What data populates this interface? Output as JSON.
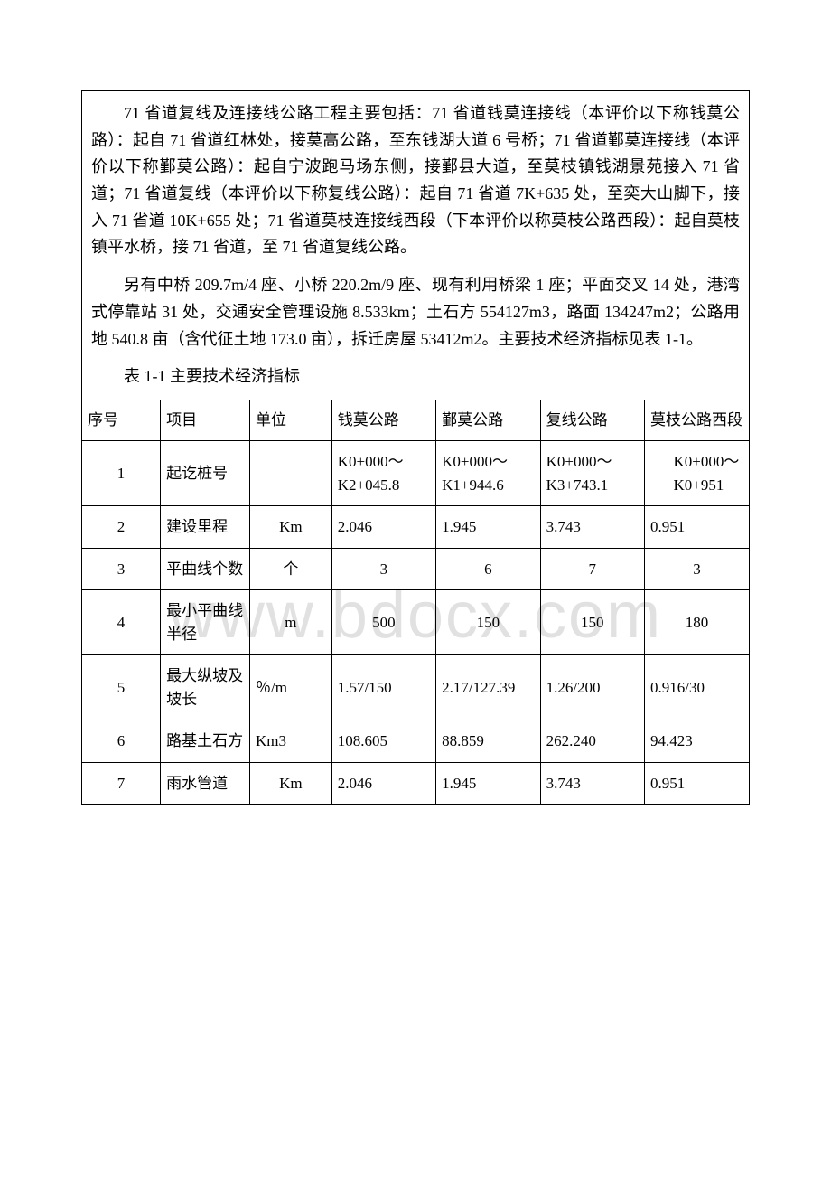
{
  "watermark": "www.bdocx.com",
  "paragraphs": {
    "p1": "71 省道复线及连接线公路工程主要包括：71 省道钱莫连接线（本评价以下称钱莫公路）：起自 71 省道红林处，接莫高公路，至东钱湖大道 6 号桥；71 省道鄞莫连接线（本评价以下称鄞莫公路）：起自宁波跑马场东侧，接鄞县大道，至莫枝镇钱湖景苑接入 71 省道；71 省道复线（本评价以下称复线公路）：起自 71 省道 7K+635 处，至奕大山脚下，接入 71 省道 10K+655 处；71 省道莫枝连接线西段（下本评价以称莫枝公路西段）：起自莫枝镇平水桥，接 71 省道，至 71 省道复线公路。",
    "p2": "另有中桥 209.7m/4 座、小桥 220.2m/9 座、现有利用桥梁 1 座；平面交叉 14 处，港湾式停靠站 31 处，交通安全管理设施 8.533km；土石方 554127m3，路面 134247m2；公路用地 540.8 亩（含代征土地 173.0 亩），拆迁房屋 53412m2。主要技术经济指标见表 1-1。",
    "caption": "表 1-1 主要技术经济指标"
  },
  "table": {
    "header": {
      "seq": "序号",
      "item": "项目",
      "unit": "单位",
      "c1": "钱莫公路",
      "c2": "鄞莫公路",
      "c3": "复线公路",
      "c4": "莫枝公路西段"
    },
    "rows": [
      {
        "seq": "1",
        "item": "起讫桩号",
        "unit": "",
        "c1": "K0+000～K2+045.8",
        "c2": "K0+000～K1+944.6",
        "c3": "K0+000～K3+743.1",
        "c4_a": "K0+000～",
        "c4_b": "K0+951"
      },
      {
        "seq": "2",
        "item": "建设里程",
        "unit": "Km",
        "c1": "2.046",
        "c2": "1.945",
        "c3": "3.743",
        "c4": "0.951"
      },
      {
        "seq": "3",
        "item": "平曲线个数",
        "unit": "个",
        "c1": "3",
        "c2": "6",
        "c3": "7",
        "c4": "3"
      },
      {
        "seq": "4",
        "item": "最小平曲线半径",
        "unit": "m",
        "c1": "500",
        "c2": "150",
        "c3": "150",
        "c4": "180"
      },
      {
        "seq": "5",
        "item": "最大纵坡及坡长",
        "unit": "％/m",
        "c1": "1.57/150",
        "c2": "2.17/127.39",
        "c3": "1.26/200",
        "c4": "0.916/30"
      },
      {
        "seq": "6",
        "item": "路基土石方",
        "unit": "Km3",
        "c1": "108.605",
        "c2": "88.859",
        "c3": "262.240",
        "c4": "94.423"
      },
      {
        "seq": "7",
        "item": "雨水管道",
        "unit": "Km",
        "c1": "2.046",
        "c2": "1.945",
        "c3": "3.743",
        "c4": "0.951"
      }
    ]
  },
  "styles": {
    "background_color": "#ffffff",
    "text_color": "#000000",
    "border_color": "#000000",
    "watermark_color": "rgba(200,200,200,0.55)",
    "body_fontsize": 18,
    "table_fontsize": 17
  }
}
